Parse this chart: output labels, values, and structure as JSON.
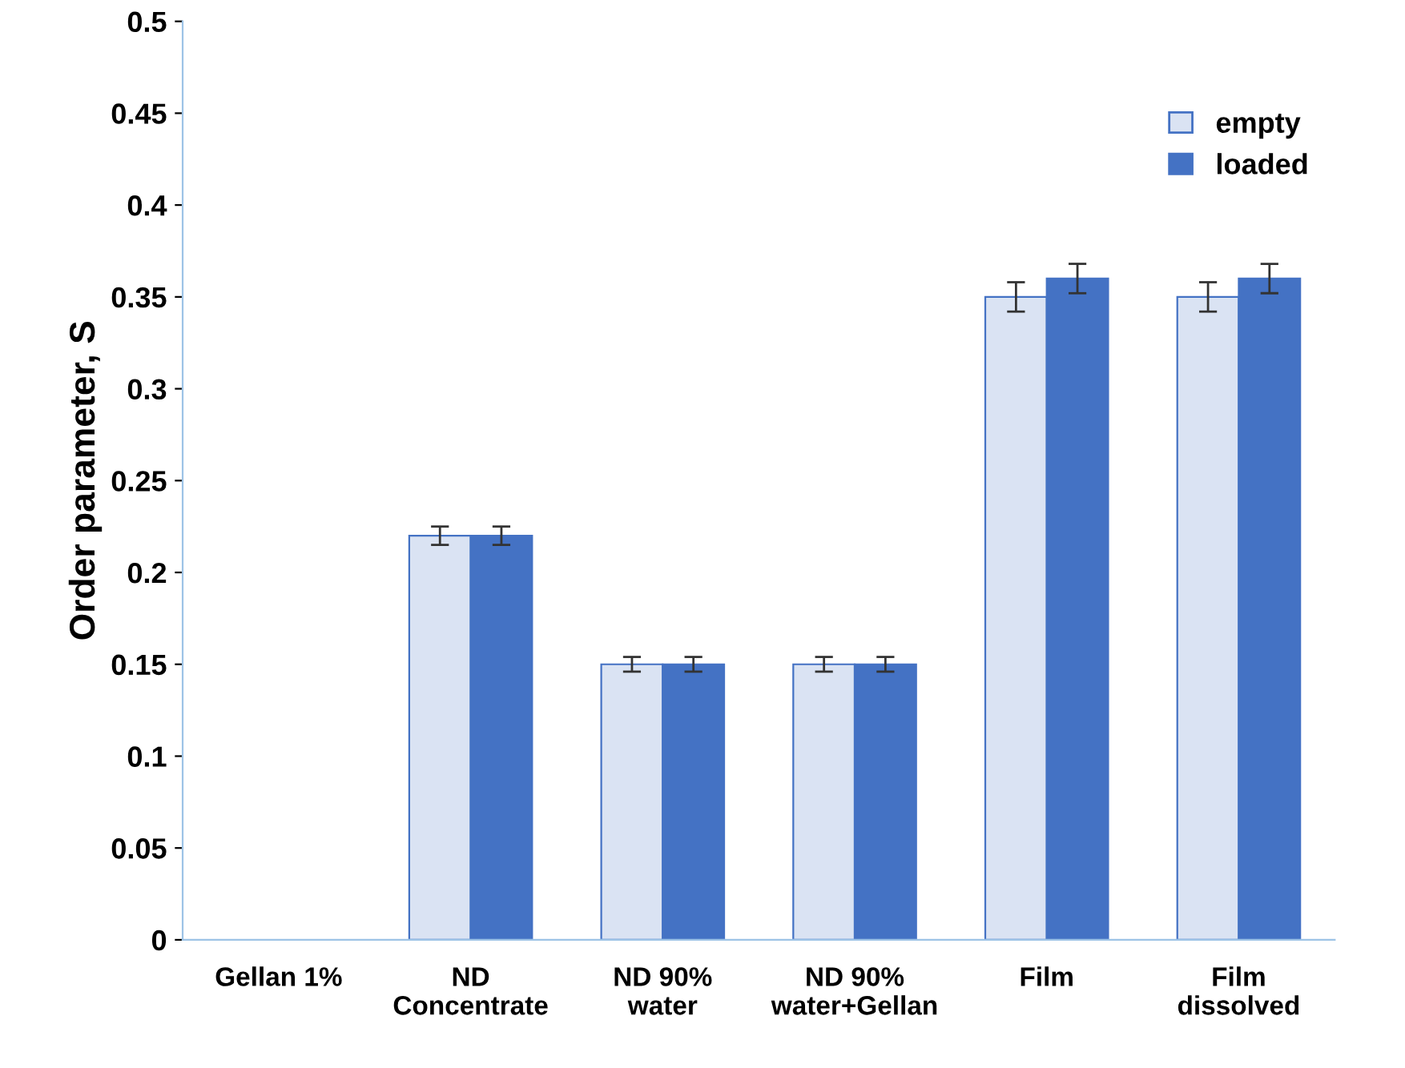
{
  "chart_data": {
    "type": "bar",
    "ylabel": "Order parameter, S",
    "categories": [
      "Gellan 1%",
      "ND\nConcentrate",
      "ND 90%\nwater",
      "ND 90%\nwater+Gellan",
      "Film",
      "Film\ndissolved"
    ],
    "series": [
      {
        "name": "empty",
        "color": "#dae3f3",
        "values": [
          null,
          0.22,
          0.15,
          0.15,
          0.35,
          0.35
        ],
        "errors": [
          null,
          0.005,
          0.004,
          0.004,
          0.008,
          0.008
        ]
      },
      {
        "name": "loaded",
        "color": "#4472c4",
        "values": [
          null,
          0.22,
          0.15,
          0.15,
          0.36,
          0.36
        ],
        "errors": [
          null,
          0.005,
          0.004,
          0.004,
          0.008,
          0.008
        ]
      }
    ],
    "ylim": [
      0,
      0.5
    ],
    "yticks": [
      0,
      0.05,
      0.1,
      0.15,
      0.2,
      0.25,
      0.3,
      0.35,
      0.4,
      0.45,
      0.5
    ],
    "grid": false,
    "legend": "top right"
  }
}
